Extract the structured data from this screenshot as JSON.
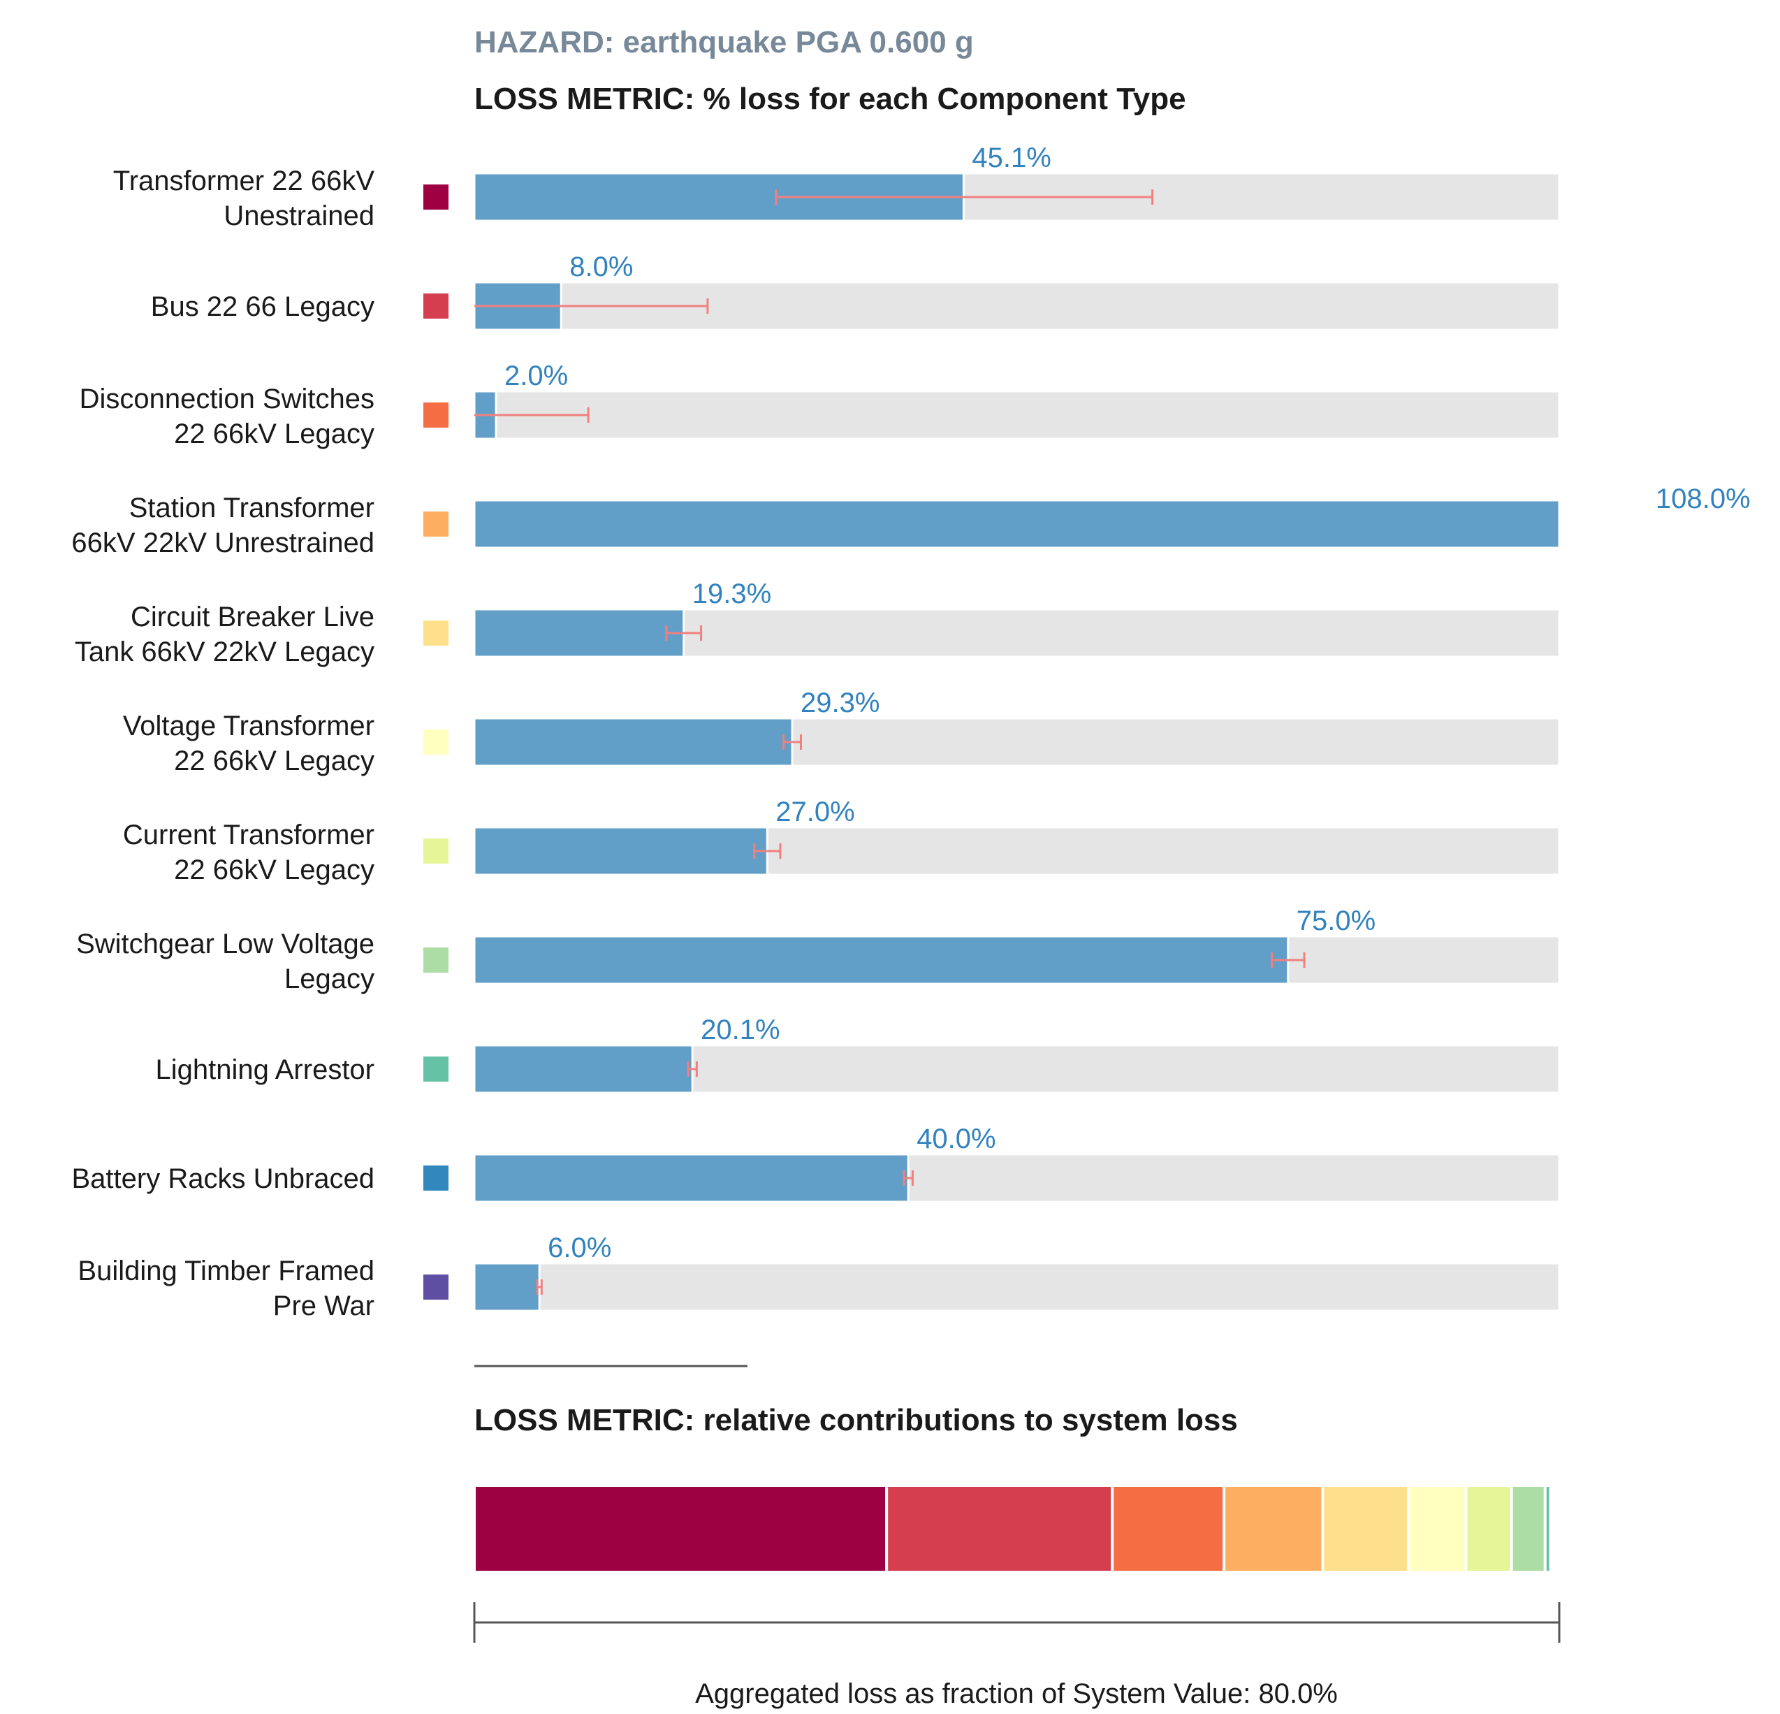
{
  "hazard_title": "HAZARD: earthquake PGA 0.600 g",
  "colors": {
    "hazard_title": "#778899",
    "section_title": "#1a1a1a",
    "label_text": "#1a1a1a",
    "bar_fill": "#619fc9",
    "bar_track": "#e5e5e5",
    "bar_track_border": "#ffffff",
    "value_label": "#3182bd",
    "error_bar": "#f08080",
    "axis_line": "#555555",
    "footer_text": "#1a1a1a"
  },
  "chart_data": [
    {
      "type": "bar",
      "orientation": "horizontal",
      "title": "LOSS METRIC: % loss for each Component Type",
      "xlim": [
        0,
        100
      ],
      "categories": [
        "Transformer 22 66kV Unestrained",
        "Bus 22 66 Legacy",
        "Disconnection Switches 22 66kV Legacy",
        "Station Transformer 66kV 22kV Unrestrained",
        "Circuit Breaker Live Tank 66kV 22kV Legacy",
        "Voltage Transformer 22 66kV Legacy",
        "Current Transformer 22 66kV Legacy",
        "Switchgear Low Voltage Legacy",
        "Lightning Arrestor",
        "Battery Racks Unbraced",
        "Building Timber Framed Pre War"
      ],
      "label_lines": [
        [
          "Transformer 22 66kV",
          "Unestrained"
        ],
        [
          "Bus 22 66 Legacy"
        ],
        [
          "Disconnection Switches",
          "22 66kV Legacy"
        ],
        [
          "Station Transformer",
          "66kV 22kV Unrestrained"
        ],
        [
          "Circuit Breaker Live",
          "Tank 66kV 22kV Legacy"
        ],
        [
          "Voltage Transformer",
          "22 66kV Legacy"
        ],
        [
          "Current Transformer",
          "22 66kV Legacy"
        ],
        [
          "Switchgear Low Voltage",
          "Legacy"
        ],
        [
          "Lightning Arrestor"
        ],
        [
          "Battery Racks Unbraced"
        ],
        [
          "Building Timber Framed",
          "Pre War"
        ]
      ],
      "values": [
        45.1,
        8.0,
        2.0,
        108.0,
        19.3,
        29.3,
        27.0,
        75.0,
        20.1,
        40.0,
        6.0
      ],
      "value_labels": [
        "45.1%",
        "8.0%",
        "2.0%",
        "108.0%",
        "19.3%",
        "29.3%",
        "27.0%",
        "75.0%",
        "20.1%",
        "40.0%",
        "6.0%"
      ],
      "error_ranges": [
        [
          27.8,
          62.5
        ],
        [
          0,
          21.5
        ],
        [
          0,
          10.5
        ],
        null,
        [
          17.7,
          20.9
        ],
        [
          28.5,
          30.1
        ],
        [
          25.8,
          28.2
        ],
        [
          73.5,
          76.5
        ],
        [
          19.7,
          20.5
        ],
        [
          39.6,
          40.4
        ],
        [
          5.8,
          6.2
        ]
      ],
      "legend_colors": [
        "#9e0142",
        "#d53e4f",
        "#f46d43",
        "#fdae61",
        "#fee08b",
        "#ffffbf",
        "#e6f598",
        "#abdda4",
        "#66c2a5",
        "#3288bd",
        "#5e4fa2"
      ]
    },
    {
      "type": "bar",
      "orientation": "stacked-horizontal",
      "title": "LOSS METRIC: relative contributions to system loss",
      "xlim": [
        0,
        100
      ],
      "xlabel": "Aggregated loss as fraction of System Value: 80.0%",
      "segments": [
        {
          "color": "#9e0142",
          "value": 38.0
        },
        {
          "color": "#d53e4f",
          "value": 20.8
        },
        {
          "color": "#f46d43",
          "value": 10.3
        },
        {
          "color": "#fdae61",
          "value": 9.1
        },
        {
          "color": "#fee08b",
          "value": 7.9
        },
        {
          "color": "#ffffbf",
          "value": 5.3
        },
        {
          "color": "#e6f598",
          "value": 4.2
        },
        {
          "color": "#abdda4",
          "value": 3.1
        },
        {
          "color": "#66c2a5",
          "value": 0.5
        }
      ]
    }
  ]
}
